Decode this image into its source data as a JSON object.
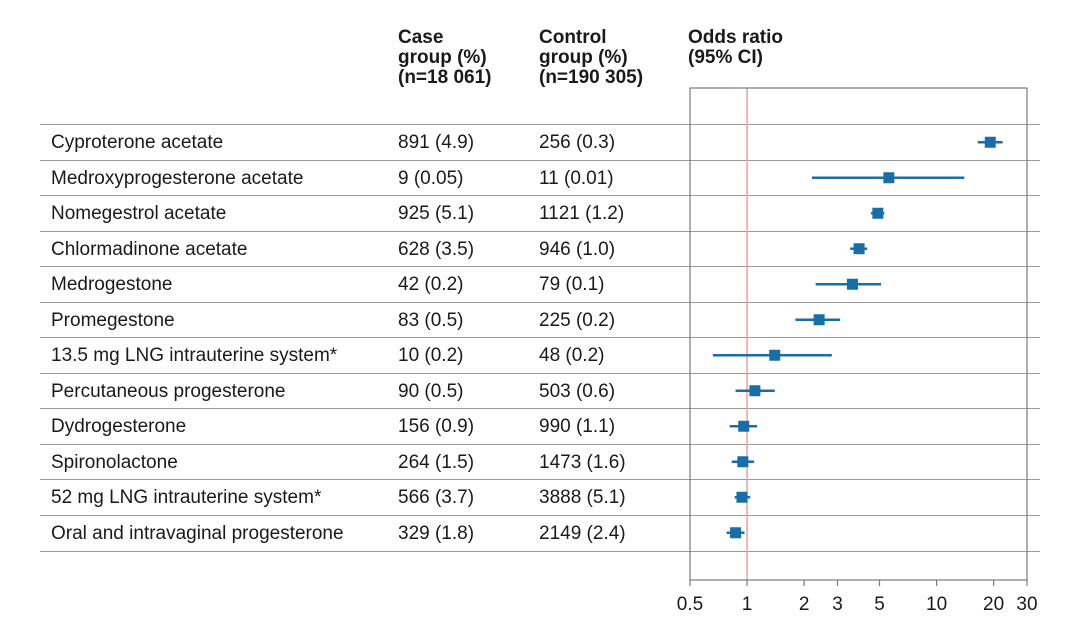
{
  "headers": {
    "case": [
      "Case",
      "group (%)",
      "(n=18 061)"
    ],
    "control": [
      "Control",
      "group (%)",
      "(n=190 305)"
    ],
    "odds": [
      "Odds ratio",
      "(95% CI)"
    ]
  },
  "rows": [
    {
      "label": "Cyproterone acetate",
      "case": "891 (4.9)",
      "control": "256 (0.3)"
    },
    {
      "label": "Medroxyprogesterone acetate",
      "case": "9 (0.05)",
      "control": "11 (0.01)"
    },
    {
      "label": "Nomegestrol acetate",
      "case": "925 (5.1)",
      "control": "1121 (1.2)"
    },
    {
      "label": "Chlormadinone acetate",
      "case": "628 (3.5)",
      "control": "946 (1.0)"
    },
    {
      "label": "Medrogestone",
      "case": "42 (0.2)",
      "control": "79 (0.1)"
    },
    {
      "label": "Promegestone",
      "case": "83 (0.5)",
      "control": "225 (0.2)"
    },
    {
      "label": "13.5 mg LNG intrauterine system*",
      "case": "10 (0.2)",
      "control": "48 (0.2)"
    },
    {
      "label": "Percutaneous progesterone",
      "case": "90 (0.5)",
      "control": "503 (0.6)"
    },
    {
      "label": "Dydrogesterone",
      "case": "156 (0.9)",
      "control": "990 (1.1)"
    },
    {
      "label": "Spironolactone",
      "case": "264 (1.5)",
      "control": "1473 (1.6)"
    },
    {
      "label": "52 mg LNG intrauterine system*",
      "case": "566 (3.7)",
      "control": "3888 (5.1)"
    },
    {
      "label": "Oral and intravaginal progesterone",
      "case": "329 (1.8)",
      "control": "2149 (2.4)"
    }
  ],
  "chart_data": {
    "type": "forest",
    "x_scale": "log",
    "xlim": [
      0.5,
      30
    ],
    "x_ticks": [
      0.5,
      1,
      2,
      3,
      5,
      10,
      20,
      30
    ],
    "x_tick_labels": [
      "0.5",
      "1",
      "2",
      "3",
      "5",
      "10",
      "20",
      "30"
    ],
    "reference_line": 1,
    "colors": {
      "marker": "#1a6ea8",
      "reference": "#e8a0a0",
      "axis": "#7a7a7a"
    },
    "points": [
      {
        "label": "Cyproterone acetate",
        "or": 19.2,
        "lo": 16.5,
        "hi": 22.3
      },
      {
        "label": "Medroxyprogesterone acetate",
        "or": 5.6,
        "lo": 2.2,
        "hi": 14.0
      },
      {
        "label": "Nomegestrol acetate",
        "or": 4.9,
        "lo": 4.5,
        "hi": 5.3
      },
      {
        "label": "Chlormadinone acetate",
        "or": 3.9,
        "lo": 3.5,
        "hi": 4.3
      },
      {
        "label": "Medrogestone",
        "or": 3.6,
        "lo": 2.3,
        "hi": 5.1
      },
      {
        "label": "Promegestone",
        "or": 2.4,
        "lo": 1.8,
        "hi": 3.1
      },
      {
        "label": "13.5 mg LNG intrauterine system*",
        "or": 1.4,
        "lo": 0.66,
        "hi": 2.8
      },
      {
        "label": "Percutaneous progesterone",
        "or": 1.1,
        "lo": 0.87,
        "hi": 1.4
      },
      {
        "label": "Dydrogesterone",
        "or": 0.96,
        "lo": 0.81,
        "hi": 1.13
      },
      {
        "label": "Spironolactone",
        "or": 0.95,
        "lo": 0.83,
        "hi": 1.09
      },
      {
        "label": "52 mg LNG intrauterine system*",
        "or": 0.94,
        "lo": 0.86,
        "hi": 1.04
      },
      {
        "label": "Oral and intravaginal progesterone",
        "or": 0.87,
        "lo": 0.78,
        "hi": 0.97
      }
    ]
  }
}
